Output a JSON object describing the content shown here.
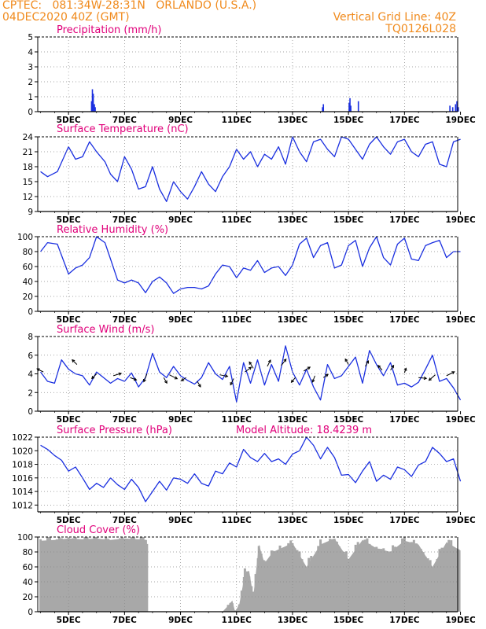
{
  "header": {
    "line1": "CPTEC:   081:34W-28:31N   ORLANDO (U.S.A.)",
    "line2": "04DEC2020 40Z (GMT)",
    "grid_note": "Vertical Grid Line: 40Z",
    "code": "TQ0126L028"
  },
  "colors": {
    "header": "#f08a1c",
    "titles": "#e0007a",
    "series": "#1a2fe0",
    "cloud": "#a8a8a8",
    "grid": "#888888"
  },
  "x_axis": {
    "start": "04DEC2020 04Z",
    "end": "19DEC2020 00Z",
    "tick_labels": [
      "5DEC",
      "7DEC",
      "9DEC",
      "11DEC",
      "13DEC",
      "15DEC",
      "17DEC",
      "19DEC"
    ]
  },
  "chart_data": [
    {
      "type": "bar",
      "title": "Precipitation (mm/h)",
      "ylim": [
        0,
        5
      ],
      "yticks": [
        "0",
        "1",
        "2",
        "3",
        "4",
        "5"
      ],
      "x_days": [
        5.8,
        5.83,
        5.86,
        5.9,
        5.93,
        14.05,
        14.08,
        15.0,
        15.03,
        15.06,
        15.33,
        18.6,
        18.7,
        18.8,
        18.85,
        18.9
      ],
      "values": [
        0.7,
        1.5,
        1.2,
        0.5,
        0.3,
        0.3,
        0.5,
        0.6,
        0.9,
        0.4,
        0.7,
        0.4,
        0.3,
        0.5,
        0.7,
        0.3
      ]
    },
    {
      "type": "line",
      "title": "Surface Temperature (nC)",
      "ylim": [
        9,
        24
      ],
      "yticks": [
        "9",
        "12",
        "15",
        "18",
        "21",
        "24"
      ],
      "x_days": [
        4.0,
        4.25,
        4.6,
        5.0,
        5.25,
        5.5,
        5.75,
        6.0,
        6.3,
        6.5,
        6.75,
        7.0,
        7.25,
        7.5,
        7.75,
        8.0,
        8.25,
        8.5,
        8.75,
        9.0,
        9.25,
        9.5,
        9.75,
        10.0,
        10.25,
        10.5,
        10.75,
        11.0,
        11.25,
        11.5,
        11.75,
        12.0,
        12.25,
        12.5,
        12.75,
        13.0,
        13.25,
        13.5,
        13.75,
        14.0,
        14.25,
        14.5,
        14.75,
        15.0,
        15.25,
        15.5,
        15.75,
        16.0,
        16.25,
        16.5,
        16.75,
        17.0,
        17.25,
        17.5,
        17.75,
        18.0,
        18.25,
        18.5,
        18.75,
        19.0
      ],
      "values": [
        17,
        16,
        17,
        22,
        19.5,
        20,
        23,
        21,
        19,
        16.5,
        15,
        20,
        17.5,
        13.5,
        14,
        18,
        13.5,
        11,
        15,
        13,
        11.5,
        14,
        17,
        14.5,
        13,
        16,
        18,
        21.5,
        19.5,
        21,
        18,
        20.5,
        19.5,
        22,
        18.5,
        24,
        21,
        19,
        23,
        23.5,
        21.5,
        20,
        24,
        23.5,
        21.5,
        19.5,
        22.5,
        24,
        22,
        20.5,
        23,
        23.5,
        21,
        20,
        22.5,
        23,
        18.5,
        18,
        23,
        23.5
      ]
    },
    {
      "type": "line",
      "title": "Relative Humidity (%)",
      "ylim": [
        0,
        100
      ],
      "yticks": [
        "0",
        "20",
        "40",
        "60",
        "80",
        "100"
      ],
      "x_days": [
        4.0,
        4.25,
        4.6,
        5.0,
        5.25,
        5.5,
        5.75,
        6.0,
        6.3,
        6.5,
        6.75,
        7.0,
        7.25,
        7.5,
        7.75,
        8.0,
        8.25,
        8.5,
        8.75,
        9.0,
        9.25,
        9.5,
        9.75,
        10.0,
        10.25,
        10.5,
        10.75,
        11.0,
        11.25,
        11.5,
        11.75,
        12.0,
        12.25,
        12.5,
        12.75,
        13.0,
        13.25,
        13.5,
        13.75,
        14.0,
        14.25,
        14.5,
        14.75,
        15.0,
        15.25,
        15.5,
        15.75,
        16.0,
        16.25,
        16.5,
        16.75,
        17.0,
        17.25,
        17.5,
        17.75,
        18.0,
        18.25,
        18.5,
        18.75,
        19.0
      ],
      "values": [
        80,
        92,
        90,
        50,
        58,
        62,
        72,
        100,
        92,
        70,
        42,
        38,
        42,
        38,
        25,
        40,
        46,
        38,
        24,
        30,
        32,
        32,
        30,
        34,
        50,
        62,
        60,
        45,
        58,
        55,
        68,
        52,
        58,
        60,
        48,
        62,
        90,
        98,
        72,
        88,
        92,
        58,
        62,
        88,
        95,
        60,
        85,
        100,
        72,
        62,
        90,
        98,
        70,
        68,
        88,
        92,
        95,
        72,
        80,
        80
      ]
    },
    {
      "type": "line",
      "title": "Surface Wind (m/s)",
      "ylim": [
        0,
        8
      ],
      "yticks": [
        "0",
        "2",
        "4",
        "6",
        "8"
      ],
      "x_days": [
        4.0,
        4.25,
        4.5,
        4.75,
        5.0,
        5.25,
        5.5,
        5.75,
        6.0,
        6.25,
        6.5,
        6.75,
        7.0,
        7.25,
        7.5,
        7.75,
        8.0,
        8.25,
        8.5,
        8.75,
        9.0,
        9.25,
        9.5,
        9.75,
        10.0,
        10.25,
        10.5,
        10.75,
        11.0,
        11.25,
        11.5,
        11.75,
        12.0,
        12.25,
        12.5,
        12.75,
        13.0,
        13.25,
        13.5,
        13.75,
        14.0,
        14.25,
        14.5,
        14.75,
        15.0,
        15.25,
        15.5,
        15.75,
        16.0,
        16.25,
        16.5,
        16.75,
        17.0,
        17.25,
        17.5,
        17.75,
        18.0,
        18.25,
        18.5,
        18.75,
        19.0
      ],
      "values": [
        4.2,
        3.2,
        3,
        5.5,
        4.5,
        4,
        3.8,
        2.8,
        4.2,
        3.6,
        3.0,
        3.5,
        3.2,
        4.1,
        2.6,
        3.6,
        6.2,
        4.2,
        3.6,
        4.8,
        3.8,
        3.3,
        2.9,
        3.6,
        5.2,
        4.0,
        3.4,
        4.8,
        1.0,
        5.2,
        3.0,
        5.5,
        2.8,
        5.0,
        3.2,
        7.0,
        4.2,
        2.8,
        4.5,
        2.6,
        1.2,
        5.0,
        3.5,
        3.8,
        4.8,
        5.8,
        3.0,
        6.5,
        5.0,
        3.8,
        5.2,
        2.8,
        3.0,
        2.6,
        3.1,
        4.5,
        6.0,
        3.2,
        3.5,
        2.5,
        1.2
      ]
    },
    {
      "type": "line",
      "title": "Surface Pressure (hPa)",
      "note": "Model Altitude:  18.4239  m",
      "ylim": [
        1011,
        1022
      ],
      "yticks": [
        "1012",
        "1014",
        "1016",
        "1018",
        "1020",
        "1022"
      ],
      "x_days": [
        4.0,
        4.25,
        4.5,
        4.75,
        5.0,
        5.25,
        5.5,
        5.75,
        6.0,
        6.25,
        6.5,
        6.75,
        7.0,
        7.25,
        7.5,
        7.75,
        8.0,
        8.25,
        8.5,
        8.75,
        9.0,
        9.25,
        9.5,
        9.75,
        10.0,
        10.25,
        10.5,
        10.75,
        11.0,
        11.25,
        11.5,
        11.75,
        12.0,
        12.25,
        12.5,
        12.75,
        13.0,
        13.25,
        13.5,
        13.75,
        14.0,
        14.25,
        14.5,
        14.75,
        15.0,
        15.25,
        15.5,
        15.75,
        16.0,
        16.25,
        16.5,
        16.75,
        17.0,
        17.25,
        17.5,
        17.75,
        18.0,
        18.25,
        18.5,
        18.75,
        19.0
      ],
      "values": [
        1020.8,
        1020.2,
        1019.3,
        1018.6,
        1017.0,
        1017.6,
        1016.0,
        1014.3,
        1015.2,
        1014.6,
        1016.0,
        1015.0,
        1014.3,
        1015.8,
        1014.6,
        1012.5,
        1014.0,
        1015.5,
        1014.2,
        1016.0,
        1015.8,
        1015.2,
        1016.6,
        1015.2,
        1014.8,
        1017.0,
        1016.6,
        1018.2,
        1017.6,
        1020.2,
        1019.0,
        1018.4,
        1019.6,
        1018.4,
        1018.8,
        1018.0,
        1019.5,
        1020.0,
        1022.0,
        1020.8,
        1018.8,
        1020.5,
        1019.0,
        1016.4,
        1016.5,
        1015.3,
        1017.0,
        1018.4,
        1015.5,
        1016.4,
        1015.8,
        1017.6,
        1017.2,
        1016.2,
        1017.9,
        1018.4,
        1020.5,
        1019.6,
        1018.4,
        1018.8,
        1015.5
      ]
    },
    {
      "type": "area",
      "title": "Cloud Cover (%)",
      "ylim": [
        0,
        100
      ],
      "yticks": [
        "0",
        "20",
        "40",
        "60",
        "80",
        "100"
      ],
      "x_days": [
        4.0,
        4.5,
        5.0,
        5.5,
        6.0,
        6.5,
        7.0,
        7.5,
        7.8,
        7.81,
        10.5,
        10.7,
        10.85,
        10.95,
        11.1,
        11.3,
        11.45,
        11.6,
        11.8,
        12.0,
        12.3,
        12.6,
        13.0,
        13.5,
        14.0,
        14.5,
        15.0,
        15.5,
        16.0,
        16.5,
        17.0,
        17.5,
        18.0,
        18.5,
        19.0
      ],
      "values": [
        95,
        96,
        98,
        97,
        98,
        96,
        98,
        97,
        96,
        0,
        0,
        8,
        15,
        0,
        10,
        50,
        55,
        20,
        90,
        65,
        80,
        85,
        92,
        60,
        90,
        98,
        70,
        96,
        85,
        80,
        95,
        90,
        60,
        93,
        82
      ]
    }
  ]
}
